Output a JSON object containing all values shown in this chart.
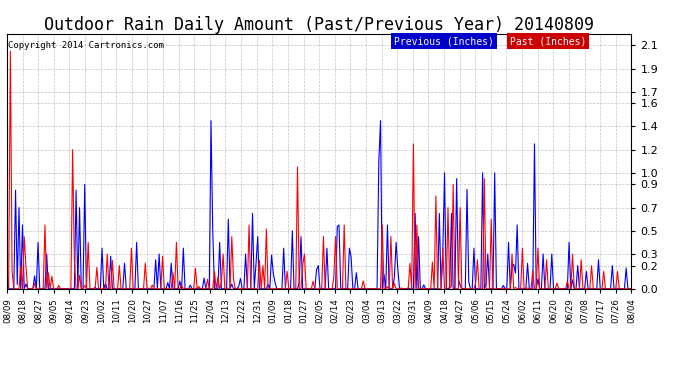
{
  "title": "Outdoor Rain Daily Amount (Past/Previous Year) 20140809",
  "copyright_text": "Copyright 2014 Cartronics.com",
  "legend_labels": [
    "Previous (Inches)",
    "Past (Inches)"
  ],
  "line_colors": [
    "#0000ff",
    "#ff0000"
  ],
  "legend_bg_colors": [
    "#0000cc",
    "#cc0000"
  ],
  "yticks": [
    0.0,
    0.2,
    0.3,
    0.5,
    0.7,
    0.9,
    1.0,
    1.2,
    1.4,
    1.6,
    1.7,
    1.9,
    2.1
  ],
  "ylim": [
    0.0,
    2.2
  ],
  "bg_color": "#ffffff",
  "grid_color": "#999999",
  "title_fontsize": 12,
  "n_points": 362
}
